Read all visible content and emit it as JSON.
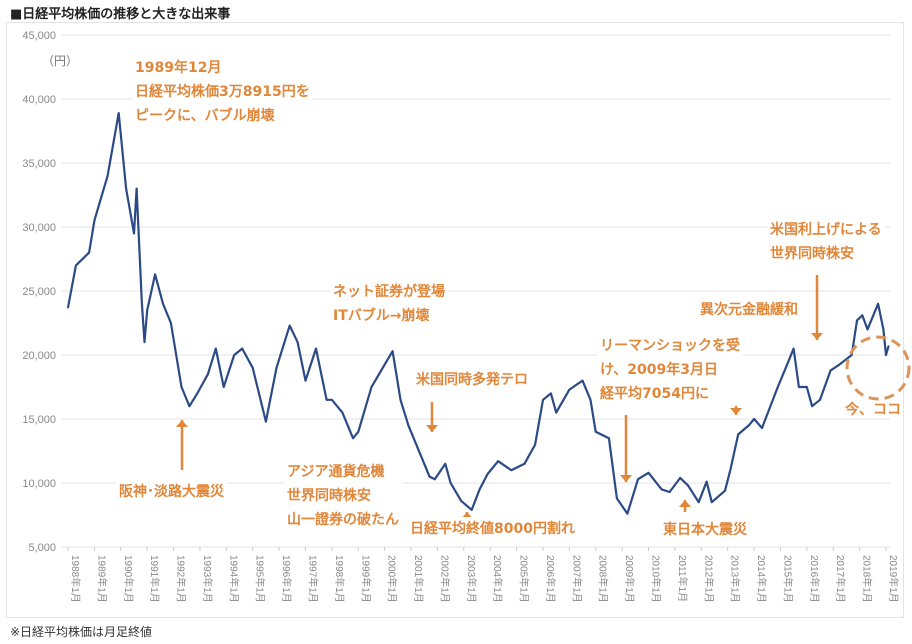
{
  "title": "■日経平均株価の推移と大きな出来事",
  "footnote": "※日経平均株価は月足終値",
  "chart_data": {
    "type": "line",
    "title": "■日経平均株価の推移と大きな出来事",
    "ylabel": "（円）",
    "ylim": [
      5000,
      45000
    ],
    "yticks": [
      "5,000",
      "10,000",
      "15,000",
      "20,000",
      "25,000",
      "30,000",
      "35,000",
      "40,000",
      "45,000"
    ],
    "xlim": [
      1988,
      2019.1
    ],
    "xticks": [
      "1988年1月",
      "1989年1月",
      "1990年1月",
      "1991年1月",
      "1992年1月",
      "1993年1月",
      "1994年1月",
      "1995年1月",
      "1996年1月",
      "1997年1月",
      "1998年1月",
      "1999年1月",
      "2000年1月",
      "2001年1月",
      "2002年1月",
      "2003年1月",
      "2004年1月",
      "2005年1月",
      "2006年1月",
      "2007年1月",
      "2008年1月",
      "2009年1月",
      "2010年1月",
      "2011年1月",
      "2012年1月",
      "2013年1月",
      "2014年1月",
      "2015年1月",
      "2016年1月",
      "2017年1月",
      "2018年1月",
      "2019年1月"
    ],
    "grid": true,
    "line_color": "#2b4a86",
    "accent_color": "#e0873a",
    "series": [
      {
        "name": "日経平均株価",
        "x": [
          1988.0,
          1988.3,
          1988.8,
          1989.0,
          1989.5,
          1989.92,
          1990.2,
          1990.5,
          1990.6,
          1990.8,
          1990.9,
          1991.0,
          1991.3,
          1991.6,
          1991.9,
          1992.3,
          1992.6,
          1992.9,
          1993.3,
          1993.6,
          1993.9,
          1994.3,
          1994.6,
          1995.0,
          1995.5,
          1995.9,
          1996.4,
          1996.7,
          1997.0,
          1997.4,
          1997.8,
          1998.0,
          1998.4,
          1998.8,
          1999.0,
          1999.5,
          1999.9,
          2000.3,
          2000.6,
          2000.9,
          2001.2,
          2001.7,
          2001.9,
          2002.3,
          2002.5,
          2002.9,
          2003.3,
          2003.6,
          2003.9,
          2004.3,
          2004.8,
          2005.3,
          2005.7,
          2006.0,
          2006.3,
          2006.5,
          2007.0,
          2007.5,
          2007.8,
          2008.0,
          2008.5,
          2008.8,
          2009.2,
          2009.6,
          2010.0,
          2010.5,
          2010.8,
          2011.2,
          2011.5,
          2011.9,
          2012.2,
          2012.4,
          2012.9,
          2013.1,
          2013.4,
          2013.8,
          2014.0,
          2014.3,
          2014.9,
          2015.3,
          2015.5,
          2015.7,
          2016.0,
          2016.2,
          2016.5,
          2016.9,
          2017.2,
          2017.7,
          2017.9,
          2018.1,
          2018.3,
          2018.7,
          2018.9,
          2019.0,
          2019.1
        ],
        "values": [
          23700,
          27000,
          28000,
          30500,
          34000,
          38900,
          33000,
          29500,
          33000,
          24000,
          21000,
          23500,
          26300,
          24000,
          22500,
          17500,
          16000,
          17000,
          18500,
          20500,
          17500,
          20000,
          20500,
          19000,
          14800,
          19000,
          22300,
          21000,
          18000,
          20500,
          16500,
          16500,
          15500,
          13500,
          14000,
          17500,
          18900,
          20300,
          16500,
          14500,
          13000,
          10500,
          10300,
          11500,
          10000,
          8600,
          7900,
          9500,
          10700,
          11700,
          11000,
          11500,
          13000,
          16500,
          17000,
          15500,
          17300,
          18000,
          16500,
          14000,
          13500,
          8800,
          7600,
          10300,
          10800,
          9500,
          9300,
          10400,
          9800,
          8500,
          10100,
          8500,
          9400,
          11000,
          13800,
          14500,
          15000,
          14300,
          17500,
          19500,
          20500,
          17500,
          17500,
          16000,
          16500,
          18800,
          19200,
          20000,
          22700,
          23100,
          22000,
          24000,
          22000,
          20000,
          20700
        ]
      }
    ],
    "annotations": [
      {
        "lines": [
          "1989年12月",
          "日経平均株価3万8915円を",
          "ピークに、バブル崩壊"
        ]
      },
      {
        "lines": [
          "阪神･淡路大震災"
        ]
      },
      {
        "lines": [
          "アジア通貨危機",
          "世界同時株安",
          "山一證券の破たん"
        ]
      },
      {
        "lines": [
          "ネット証券が登場",
          "ITバブル→崩壊"
        ]
      },
      {
        "lines": [
          "米国同時多発テロ"
        ]
      },
      {
        "lines": [
          "日経平均終値8000円割れ"
        ]
      },
      {
        "lines": [
          "リーマンショックを受",
          "け、2009年3月日",
          "経平均7054円に"
        ]
      },
      {
        "lines": [
          "東日本大震災"
        ]
      },
      {
        "lines": [
          "異次元金融緩和"
        ]
      },
      {
        "lines": [
          "米国利上げによる",
          "世界同時株安"
        ]
      },
      {
        "lines": [
          "今、ココ"
        ]
      }
    ]
  }
}
